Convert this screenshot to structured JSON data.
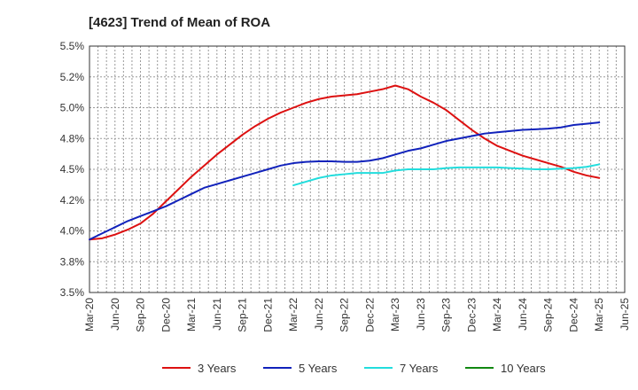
{
  "chart_data": {
    "type": "line",
    "title": "[4623]  Trend of Mean of ROA",
    "xlabel": "",
    "ylabel": "",
    "x_ticks": [
      "Mar-20",
      "Jun-20",
      "Sep-20",
      "Dec-20",
      "Mar-21",
      "Jun-21",
      "Sep-21",
      "Dec-21",
      "Mar-22",
      "Jun-22",
      "Sep-22",
      "Dec-22",
      "Mar-23",
      "Jun-23",
      "Sep-23",
      "Dec-23",
      "Mar-24",
      "Jun-24",
      "Sep-24",
      "Dec-24",
      "Mar-25",
      "Jun-25"
    ],
    "y_ticks": [
      "3.5%",
      "3.8%",
      "4.0%",
      "4.2%",
      "4.5%",
      "4.8%",
      "5.0%",
      "5.2%",
      "5.5%"
    ],
    "ylim": [
      3.5,
      5.5
    ],
    "grid": true,
    "legend_position": "bottom",
    "series": [
      {
        "name": "3 Years",
        "color": "#dd1111",
        "values": [
          [
            0,
            3.93
          ],
          [
            0.5,
            3.94
          ],
          [
            1,
            3.97
          ],
          [
            1.5,
            4.01
          ],
          [
            2,
            4.06
          ],
          [
            2.5,
            4.14
          ],
          [
            3,
            4.24
          ],
          [
            3.5,
            4.34
          ],
          [
            4,
            4.44
          ],
          [
            4.5,
            4.53
          ],
          [
            5,
            4.62
          ],
          [
            5.5,
            4.7
          ],
          [
            6,
            4.78
          ],
          [
            6.5,
            4.85
          ],
          [
            7,
            4.91
          ],
          [
            7.5,
            4.96
          ],
          [
            8,
            5.0
          ],
          [
            8.5,
            5.04
          ],
          [
            9,
            5.07
          ],
          [
            9.5,
            5.09
          ],
          [
            10,
            5.1
          ],
          [
            10.5,
            5.11
          ],
          [
            11,
            5.13
          ],
          [
            11.5,
            5.15
          ],
          [
            12,
            5.18
          ],
          [
            12.5,
            5.15
          ],
          [
            13,
            5.09
          ],
          [
            13.5,
            5.04
          ],
          [
            14,
            4.98
          ],
          [
            14.5,
            4.9
          ],
          [
            15,
            4.82
          ],
          [
            15.5,
            4.75
          ],
          [
            16,
            4.69
          ],
          [
            16.5,
            4.65
          ],
          [
            17,
            4.61
          ],
          [
            17.5,
            4.58
          ],
          [
            18,
            4.55
          ],
          [
            18.5,
            4.52
          ],
          [
            19,
            4.48
          ],
          [
            19.5,
            4.45
          ],
          [
            20,
            4.43
          ]
        ]
      },
      {
        "name": "5 Years",
        "color": "#1122bb",
        "values": [
          [
            0,
            3.93
          ],
          [
            0.5,
            3.98
          ],
          [
            1,
            4.03
          ],
          [
            1.5,
            4.08
          ],
          [
            2,
            4.12
          ],
          [
            2.5,
            4.16
          ],
          [
            3,
            4.2
          ],
          [
            3.5,
            4.25
          ],
          [
            4,
            4.3
          ],
          [
            4.5,
            4.35
          ],
          [
            5,
            4.38
          ],
          [
            5.5,
            4.41
          ],
          [
            6,
            4.44
          ],
          [
            6.5,
            4.47
          ],
          [
            7,
            4.5
          ],
          [
            7.5,
            4.53
          ],
          [
            8,
            4.55
          ],
          [
            8.5,
            4.56
          ],
          [
            9,
            4.565
          ],
          [
            9.5,
            4.565
          ],
          [
            10,
            4.56
          ],
          [
            10.5,
            4.56
          ],
          [
            11,
            4.57
          ],
          [
            11.5,
            4.59
          ],
          [
            12,
            4.62
          ],
          [
            12.5,
            4.65
          ],
          [
            13,
            4.67
          ],
          [
            13.5,
            4.7
          ],
          [
            14,
            4.73
          ],
          [
            14.5,
            4.75
          ],
          [
            15,
            4.77
          ],
          [
            15.5,
            4.79
          ],
          [
            16,
            4.8
          ],
          [
            16.5,
            4.81
          ],
          [
            17,
            4.82
          ],
          [
            17.5,
            4.825
          ],
          [
            18,
            4.83
          ],
          [
            18.5,
            4.84
          ],
          [
            19,
            4.86
          ],
          [
            19.5,
            4.87
          ],
          [
            20,
            4.88
          ]
        ]
      },
      {
        "name": "7 Years",
        "color": "#22dddd",
        "values": [
          [
            8,
            4.37
          ],
          [
            8.5,
            4.4
          ],
          [
            9,
            4.43
          ],
          [
            9.5,
            4.45
          ],
          [
            10,
            4.46
          ],
          [
            10.5,
            4.47
          ],
          [
            11,
            4.47
          ],
          [
            11.5,
            4.47
          ],
          [
            12,
            4.49
          ],
          [
            12.5,
            4.5
          ],
          [
            13,
            4.5
          ],
          [
            13.5,
            4.5
          ],
          [
            14,
            4.51
          ],
          [
            14.5,
            4.515
          ],
          [
            15,
            4.515
          ],
          [
            15.5,
            4.515
          ],
          [
            16,
            4.515
          ],
          [
            16.5,
            4.51
          ],
          [
            17,
            4.505
          ],
          [
            17.5,
            4.5
          ],
          [
            18,
            4.5
          ],
          [
            18.5,
            4.505
          ],
          [
            19,
            4.51
          ],
          [
            19.5,
            4.52
          ],
          [
            20,
            4.54
          ]
        ]
      },
      {
        "name": "10 Years",
        "color": "#118811",
        "values": []
      }
    ]
  }
}
